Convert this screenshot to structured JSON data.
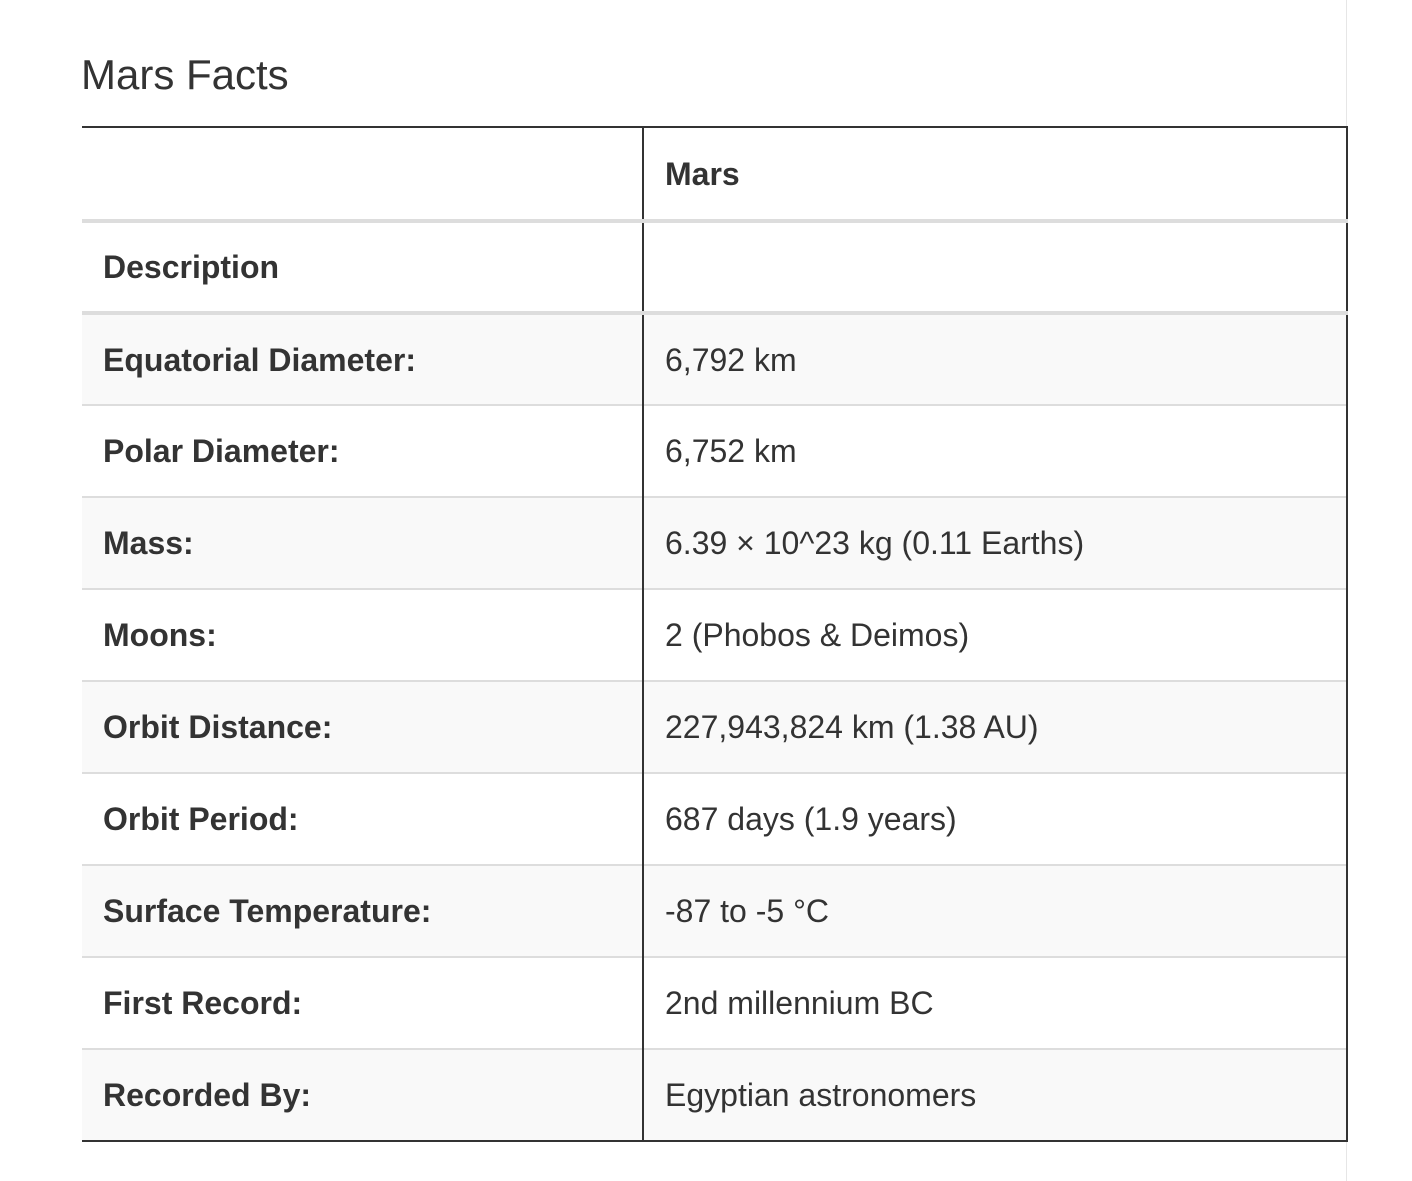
{
  "page": {
    "title": "Mars Facts"
  },
  "table": {
    "header": {
      "label": "",
      "value": "Mars"
    },
    "rows": [
      {
        "label": "Description",
        "value": ""
      },
      {
        "label": "Equatorial Diameter:",
        "value": "6,792 km"
      },
      {
        "label": "Polar Diameter:",
        "value": "6,752 km"
      },
      {
        "label": "Mass:",
        "value": "6.39 × 10^23 kg (0.11 Earths)"
      },
      {
        "label": "Moons:",
        "value": "2 (Phobos & Deimos)"
      },
      {
        "label": "Orbit Distance:",
        "value": "227,943,824 km (1.38 AU)"
      },
      {
        "label": "Orbit Period:",
        "value": "687 days (1.9 years)"
      },
      {
        "label": "Surface Temperature:",
        "value": "-87 to -5 °C"
      },
      {
        "label": "First Record:",
        "value": "2nd millennium BC"
      },
      {
        "label": "Recorded By:",
        "value": "Egyptian astronomers"
      }
    ]
  }
}
